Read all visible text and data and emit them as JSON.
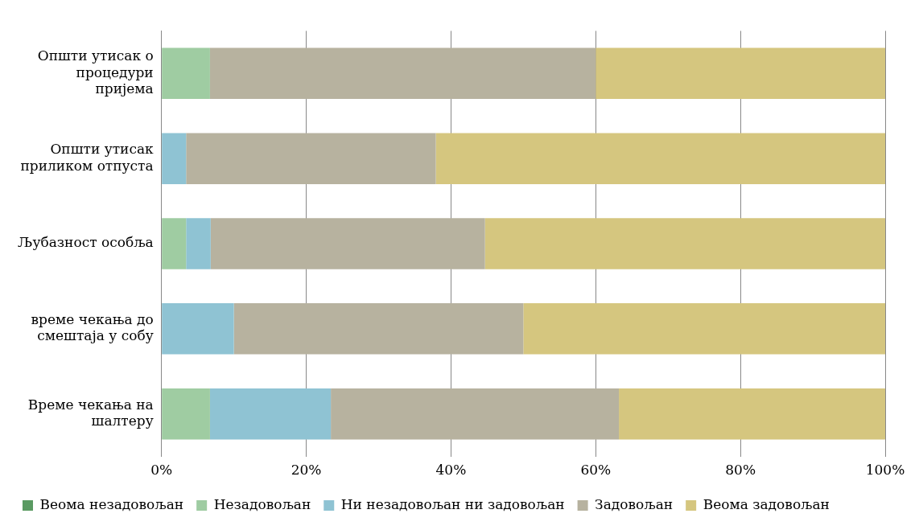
{
  "chart_data": {
    "type": "bar",
    "orientation": "horizontal",
    "stacked": true,
    "categories": [
      "Општи утисак о процедури пријема",
      "Општи утисак приликом отпуста",
      "Љубазност особља",
      "време чекања до смештаја у собу",
      "Време чекања на шалтеру"
    ],
    "series": [
      {
        "name": "Веома незадовољан",
        "color": "#5a9a62",
        "values": [
          0,
          0,
          0,
          0,
          0
        ]
      },
      {
        "name": "Незадовољан",
        "color": "#9fcca2",
        "values": [
          6.7,
          0,
          3.4,
          0,
          6.7
        ]
      },
      {
        "name": "Ни незадовољан ни задовољан",
        "color": "#8fc3d3",
        "values": [
          0,
          3.4,
          3.4,
          10,
          16.7
        ]
      },
      {
        "name": "Задовољан",
        "color": "#b7b29f",
        "values": [
          53.3,
          34.5,
          37.9,
          40,
          39.8
        ]
      },
      {
        "name": "Веома задовољан",
        "color": "#d5c67f",
        "values": [
          40,
          62.1,
          55.3,
          50,
          36.8
        ]
      }
    ],
    "xlim": [
      0,
      100
    ],
    "xticks": [
      {
        "value": 0,
        "label": "0%"
      },
      {
        "value": 20,
        "label": "20%"
      },
      {
        "value": 40,
        "label": "40%"
      },
      {
        "value": 60,
        "label": "60%"
      },
      {
        "value": 80,
        "label": "80%"
      },
      {
        "value": 100,
        "label": "100%"
      }
    ],
    "grid": "x",
    "legend": "bottom"
  }
}
